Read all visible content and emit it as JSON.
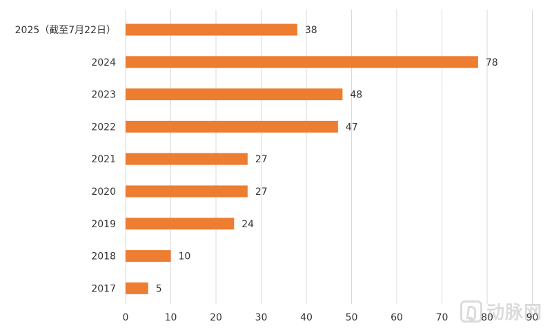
{
  "chart_data": {
    "type": "bar",
    "orientation": "horizontal",
    "categories": [
      "2025（截至7月22日）",
      "2024",
      "2023",
      "2022",
      "2021",
      "2020",
      "2019",
      "2018",
      "2017"
    ],
    "values": [
      38,
      78,
      48,
      47,
      27,
      27,
      24,
      10,
      5
    ],
    "data_labels": [
      "38",
      "78",
      "48",
      "47",
      "27",
      "27",
      "24",
      "10",
      "5"
    ],
    "x_ticks": [
      "0",
      "10",
      "20",
      "30",
      "40",
      "50",
      "60",
      "70",
      "80",
      "90"
    ],
    "xlim": [
      0,
      90
    ],
    "grid": "vertical",
    "legend": "none",
    "bar_color": "#ED7D31",
    "grid_color": "#D9D9D9",
    "title": "",
    "xlabel": "",
    "ylabel": ""
  },
  "watermark": {
    "logo_icon": "vb-logo-icon",
    "text": "动脉网"
  }
}
